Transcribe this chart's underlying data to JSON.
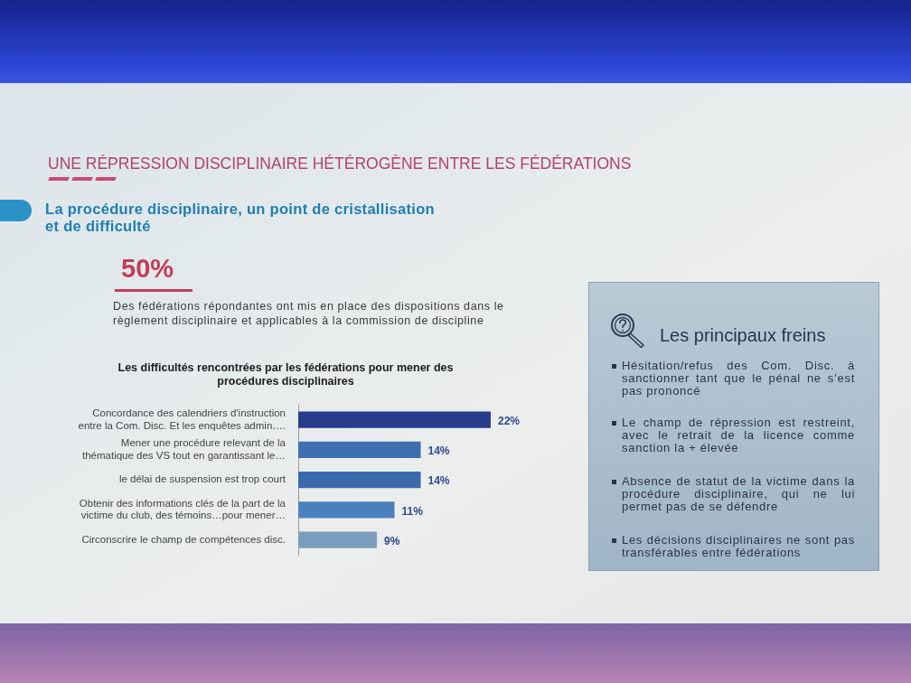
{
  "chart_data": {
    "type": "bar",
    "orientation": "horizontal",
    "title": "Les difficultés rencontrées par les fédérations pour mener des procédures disciplinaires",
    "categories": [
      "Concordance des calendriers d'instruction entre la Com. Disc. Et les enquêtes admin….",
      "Mener une procédure relevant de la thématique des VS tout en garantissant le…",
      "le délai de suspension est trop court",
      "Obtenir des informations clés de la part de la victime du club, des témoins…pour mener…",
      "Circonscrire le champ de compétences disc."
    ],
    "values": [
      22,
      14,
      14,
      11,
      9
    ],
    "value_labels": [
      "22%",
      "14%",
      "14%",
      "11%",
      "9%"
    ],
    "colors": [
      "#283c8c",
      "#3d6fb1",
      "#3a6aab",
      "#4a80be",
      "#7b9dbd"
    ],
    "annotations": [
      "UNE RÉPRESSION DISCIPLINAIRE HÉTÉROGÈNE ENTRE LES FÉDÉRATIONS",
      "La procédure disciplinaire, un point de cristallisation et de difficulté",
      "50%",
      "Des fédérations répondantes ont mis en place des dispositions dans le règlement disciplinaire et applicables à la commission de discipline",
      "Les principaux freins",
      "Hésitation/refus des Com. Disc. à sanctionner tant que le pénal ne s’est pas prononcé",
      "Le champ de répression est restreint, avec le retrait de la licence comme sanction la + élevée",
      "Absence de statut de la victime dans la procédure disciplinaire, qui ne lui permet pas de se défendre",
      "Les décisions disciplinaires ne sont pas transférables entre fédérations"
    ]
  }
}
